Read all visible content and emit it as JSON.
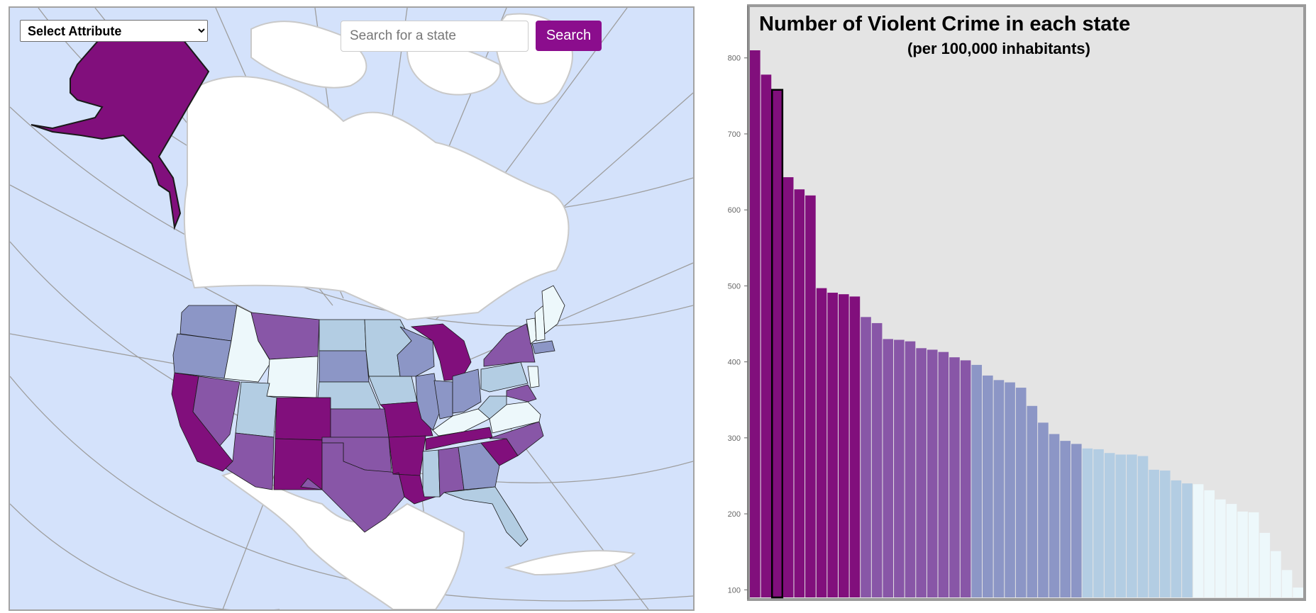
{
  "toolbar": {
    "attribute_select_value": "Select Attribute",
    "search_placeholder": "Search for a state",
    "search_button_label": "Search"
  },
  "colors": {
    "class_1": "#edf8fb",
    "class_2": "#b3cde3",
    "class_3": "#8c96c6",
    "class_4": "#8856a7",
    "class_5": "#810f7c",
    "ocean": "#d4e2fb",
    "land": "#ffffff",
    "chart_background": "#e4e4e4",
    "accent": "#8b0d8d"
  },
  "map": {
    "states": [
      {
        "name": "Alaska",
        "class": 5
      },
      {
        "name": "Washington",
        "class": 3
      },
      {
        "name": "Oregon",
        "class": 3
      },
      {
        "name": "California",
        "class": 5
      },
      {
        "name": "Nevada",
        "class": 4
      },
      {
        "name": "Idaho",
        "class": 1
      },
      {
        "name": "Montana",
        "class": 4
      },
      {
        "name": "Wyoming",
        "class": 1
      },
      {
        "name": "Utah",
        "class": 2
      },
      {
        "name": "Arizona",
        "class": 4
      },
      {
        "name": "Colorado",
        "class": 5
      },
      {
        "name": "New Mexico",
        "class": 5
      },
      {
        "name": "North Dakota",
        "class": 2
      },
      {
        "name": "South Dakota",
        "class": 3
      },
      {
        "name": "Nebraska",
        "class": 2
      },
      {
        "name": "Kansas",
        "class": 4
      },
      {
        "name": "Oklahoma",
        "class": 4
      },
      {
        "name": "Texas",
        "class": 4
      },
      {
        "name": "Minnesota",
        "class": 2
      },
      {
        "name": "Iowa",
        "class": 2
      },
      {
        "name": "Missouri",
        "class": 5
      },
      {
        "name": "Arkansas",
        "class": 5
      },
      {
        "name": "Louisiana",
        "class": 5
      },
      {
        "name": "Wisconsin",
        "class": 3
      },
      {
        "name": "Michigan",
        "class": 5
      },
      {
        "name": "Illinois",
        "class": 3
      },
      {
        "name": "Indiana",
        "class": 3
      },
      {
        "name": "Ohio",
        "class": 3
      },
      {
        "name": "Kentucky",
        "class": 1
      },
      {
        "name": "Tennessee",
        "class": 5
      },
      {
        "name": "Mississippi",
        "class": 2
      },
      {
        "name": "Alabama",
        "class": 4
      },
      {
        "name": "Georgia",
        "class": 3
      },
      {
        "name": "Florida",
        "class": 2
      },
      {
        "name": "South Carolina",
        "class": 5
      },
      {
        "name": "North Carolina",
        "class": 4
      },
      {
        "name": "Virginia",
        "class": 1
      },
      {
        "name": "West Virginia",
        "class": 2
      },
      {
        "name": "Pennsylvania",
        "class": 2
      },
      {
        "name": "New York",
        "class": 4
      },
      {
        "name": "Maryland",
        "class": 4
      },
      {
        "name": "New Jersey",
        "class": 1
      },
      {
        "name": "Vermont",
        "class": 1
      },
      {
        "name": "New Hampshire",
        "class": 1
      },
      {
        "name": "Maine",
        "class": 1
      },
      {
        "name": "Massachusetts",
        "class": 3
      }
    ]
  },
  "chart_data": {
    "type": "bar",
    "title": "Number of Violent Crime in each state",
    "subtitle": "(per 100,000 inhabitants)",
    "xlabel": "",
    "ylabel": "",
    "ylim": [
      90,
      810
    ],
    "yticks": [
      100,
      200,
      300,
      400,
      500,
      600,
      700,
      800
    ],
    "grid": false,
    "selected_index": 2,
    "values": [
      810,
      778,
      758,
      643,
      627,
      619,
      497,
      491,
      489,
      486,
      459,
      451,
      430,
      429,
      427,
      418,
      416,
      413,
      406,
      402,
      396,
      382,
      376,
      373,
      366,
      342,
      320,
      305,
      296,
      292,
      286,
      285,
      280,
      278,
      278,
      276,
      258,
      257,
      244,
      240,
      239,
      231,
      219,
      213,
      203,
      202,
      175,
      151,
      126,
      103
    ],
    "classes": [
      5,
      5,
      5,
      5,
      5,
      5,
      5,
      5,
      5,
      5,
      4,
      4,
      4,
      4,
      4,
      4,
      4,
      4,
      4,
      4,
      3,
      3,
      3,
      3,
      3,
      3,
      3,
      3,
      3,
      3,
      2,
      2,
      2,
      2,
      2,
      2,
      2,
      2,
      2,
      2,
      1,
      1,
      1,
      1,
      1,
      1,
      1,
      1,
      1,
      1
    ]
  }
}
